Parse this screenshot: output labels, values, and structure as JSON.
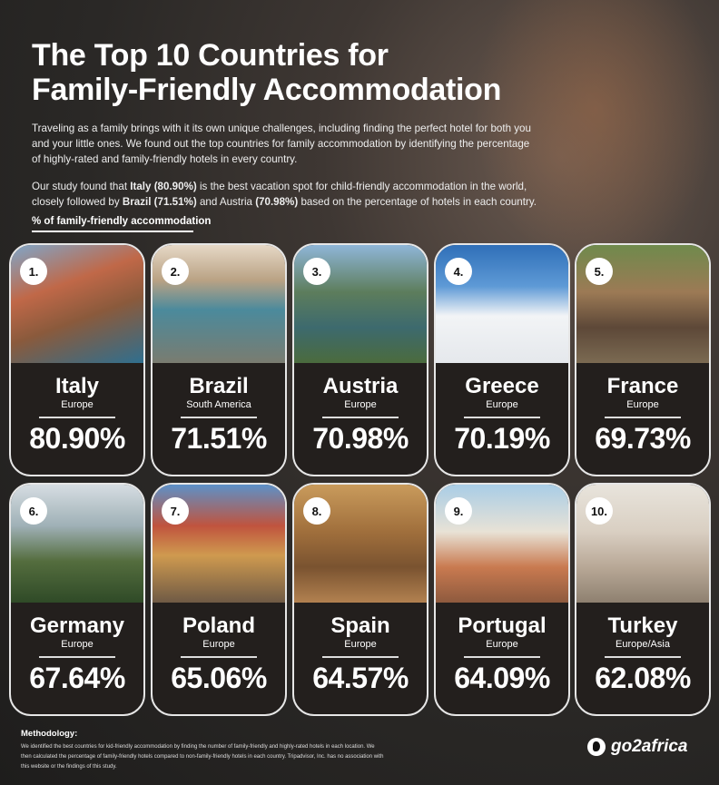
{
  "title_line1": "The Top 10 Countries for",
  "title_line2": "Family-Friendly Accommodation",
  "intro1": "Traveling as a family brings with it its own unique challenges, including finding the perfect hotel for both you and your little ones. We found out the top countries for family accommodation by identifying the percentage of highly-rated and family-friendly hotels in every country.",
  "intro2": {
    "a": "Our study found that ",
    "b": "Italy (80.90%)",
    "c": " is the best vacation spot for child-friendly accommodation in the world, closely followed by ",
    "d": "Brazil (71.51%)",
    "e": " and Austria ",
    "f": "(70.98%)",
    "g": " based on the percentage of hotels in each country."
  },
  "section_label": "% of family-friendly accommodation",
  "countries": [
    {
      "rank": "1.",
      "name": "Italy",
      "region": "Europe",
      "pct": "80.90%",
      "img": "linear-gradient(160deg,#7fa6c8 0%,#c06848 35%,#8a5a3c 60%,#2f6f8f 100%)"
    },
    {
      "rank": "2.",
      "name": "Brazil",
      "region": "South America",
      "pct": "71.51%",
      "img": "linear-gradient(180deg,#e6d8c6 0%,#b9a284 30%,#4b8a9c 55%,#7a7c70 100%)"
    },
    {
      "rank": "3.",
      "name": "Austria",
      "region": "Europe",
      "pct": "70.98%",
      "img": "linear-gradient(180deg,#8fb6d8 0%,#5d7d5c 40%,#3d6a6e 70%,#4b6b3d 100%)"
    },
    {
      "rank": "4.",
      "name": "Greece",
      "region": "Europe",
      "pct": "70.19%",
      "img": "linear-gradient(180deg,#2f6fb8 0%,#5e9ad6 35%,#f2f4f6 60%,#e5e8ec 100%)"
    },
    {
      "rank": "5.",
      "name": "France",
      "region": "Europe",
      "pct": "69.73%",
      "img": "linear-gradient(180deg,#6f8a4c 0%,#9c7a55 40%,#5d4838 70%,#7b6a52 100%)"
    },
    {
      "rank": "6.",
      "name": "Germany",
      "region": "Europe",
      "pct": "67.64%",
      "img": "linear-gradient(180deg,#d6dde2 0%,#9fb0b6 35%,#546d3e 65%,#2f4a27 100%)"
    },
    {
      "rank": "7.",
      "name": "Poland",
      "region": "Europe",
      "pct": "65.06%",
      "img": "linear-gradient(180deg,#5d91c8 0%,#c0543e 35%,#cf9a4f 60%,#6f5a45 100%)"
    },
    {
      "rank": "8.",
      "name": "Spain",
      "region": "Europe",
      "pct": "64.57%",
      "img": "linear-gradient(180deg,#c99b5c 0%,#a06f3c 40%,#7a5330 70%,#b28150 100%)"
    },
    {
      "rank": "9.",
      "name": "Portugal",
      "region": "Europe",
      "pct": "64.09%",
      "img": "linear-gradient(180deg,#a9cde6 0%,#e8e2d6 40%,#c97a50 70%,#8e5a3e 100%)"
    },
    {
      "rank": "10.",
      "name": "Turkey",
      "region": "Europe/Asia",
      "pct": "62.08%",
      "img": "linear-gradient(180deg,#e8e4dc 0%,#d9cfc2 40%,#b8a896 70%,#8e8070 100%)"
    }
  ],
  "methodology_title": "Methodology:",
  "methodology_text": "We identified the best countries for kid-friendly accommodation by finding the number of family-friendly and highly-rated hotels in each location. We then calculated the percentage of family-friendly hotels compared to non-family-friendly hotels in each country. Tripadvisor, Inc. has no association with this website or the findings of this study.",
  "logo": "go2africa"
}
